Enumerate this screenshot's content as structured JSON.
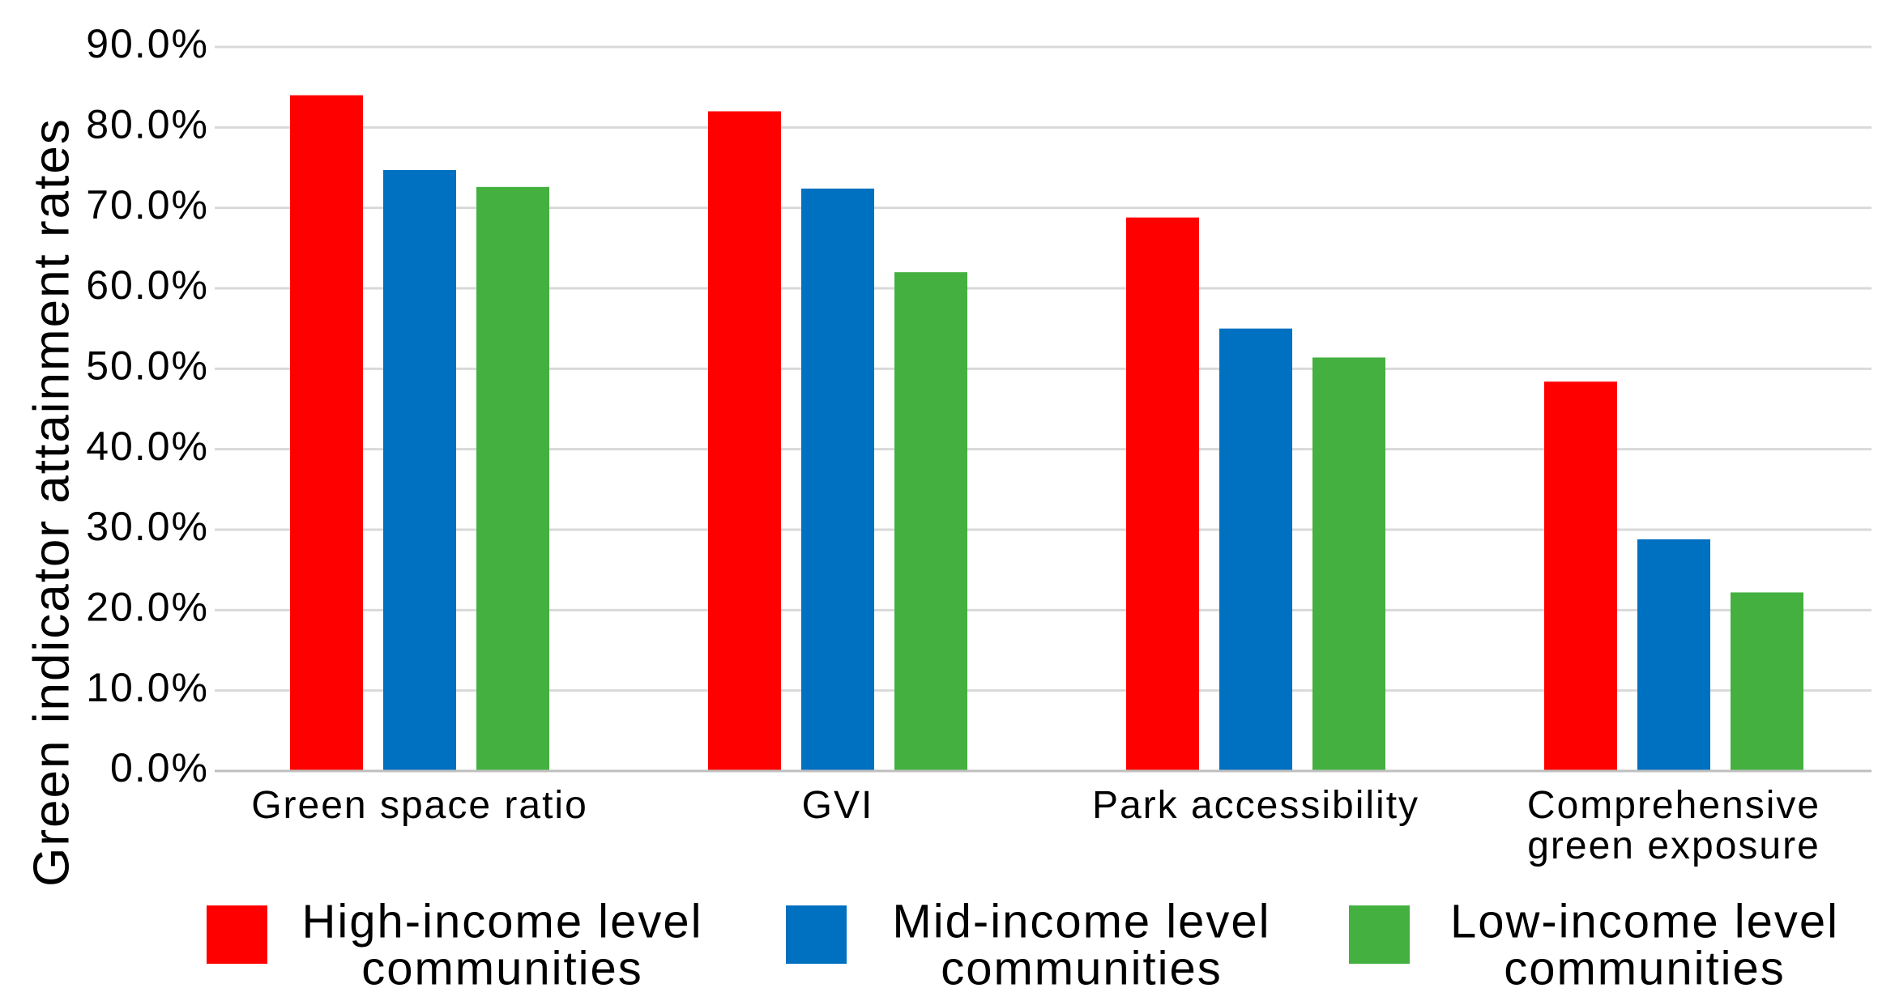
{
  "chart_data": {
    "type": "bar",
    "title": "",
    "xlabel": "",
    "ylabel": "Green indicator attainment rates",
    "ylim": [
      0,
      90
    ],
    "yticks": [
      0,
      10,
      20,
      30,
      40,
      50,
      60,
      70,
      80,
      90
    ],
    "ytick_labels": [
      "0.0%",
      "10.0%",
      "20.0%",
      "30.0%",
      "40.0%",
      "50.0%",
      "60.0%",
      "70.0%",
      "80.0%",
      "90.0%"
    ],
    "grid": true,
    "legend_position": "bottom",
    "categories": [
      [
        "Green space ratio"
      ],
      [
        "GVI"
      ],
      [
        "Park accessibility"
      ],
      [
        "Comprehensive",
        "green exposure"
      ]
    ],
    "series": [
      {
        "name": [
          "High-income level",
          "communities"
        ],
        "color": "#ff0000",
        "values": [
          84.0,
          82.0,
          68.8,
          48.4
        ]
      },
      {
        "name": [
          "Mid-income level",
          "communities"
        ],
        "color": "#0070c0",
        "values": [
          74.7,
          72.4,
          55.0,
          28.8
        ]
      },
      {
        "name": [
          "Low-income level",
          "communities"
        ],
        "color": "#44b040",
        "values": [
          72.6,
          62.0,
          51.4,
          22.2
        ]
      }
    ]
  }
}
